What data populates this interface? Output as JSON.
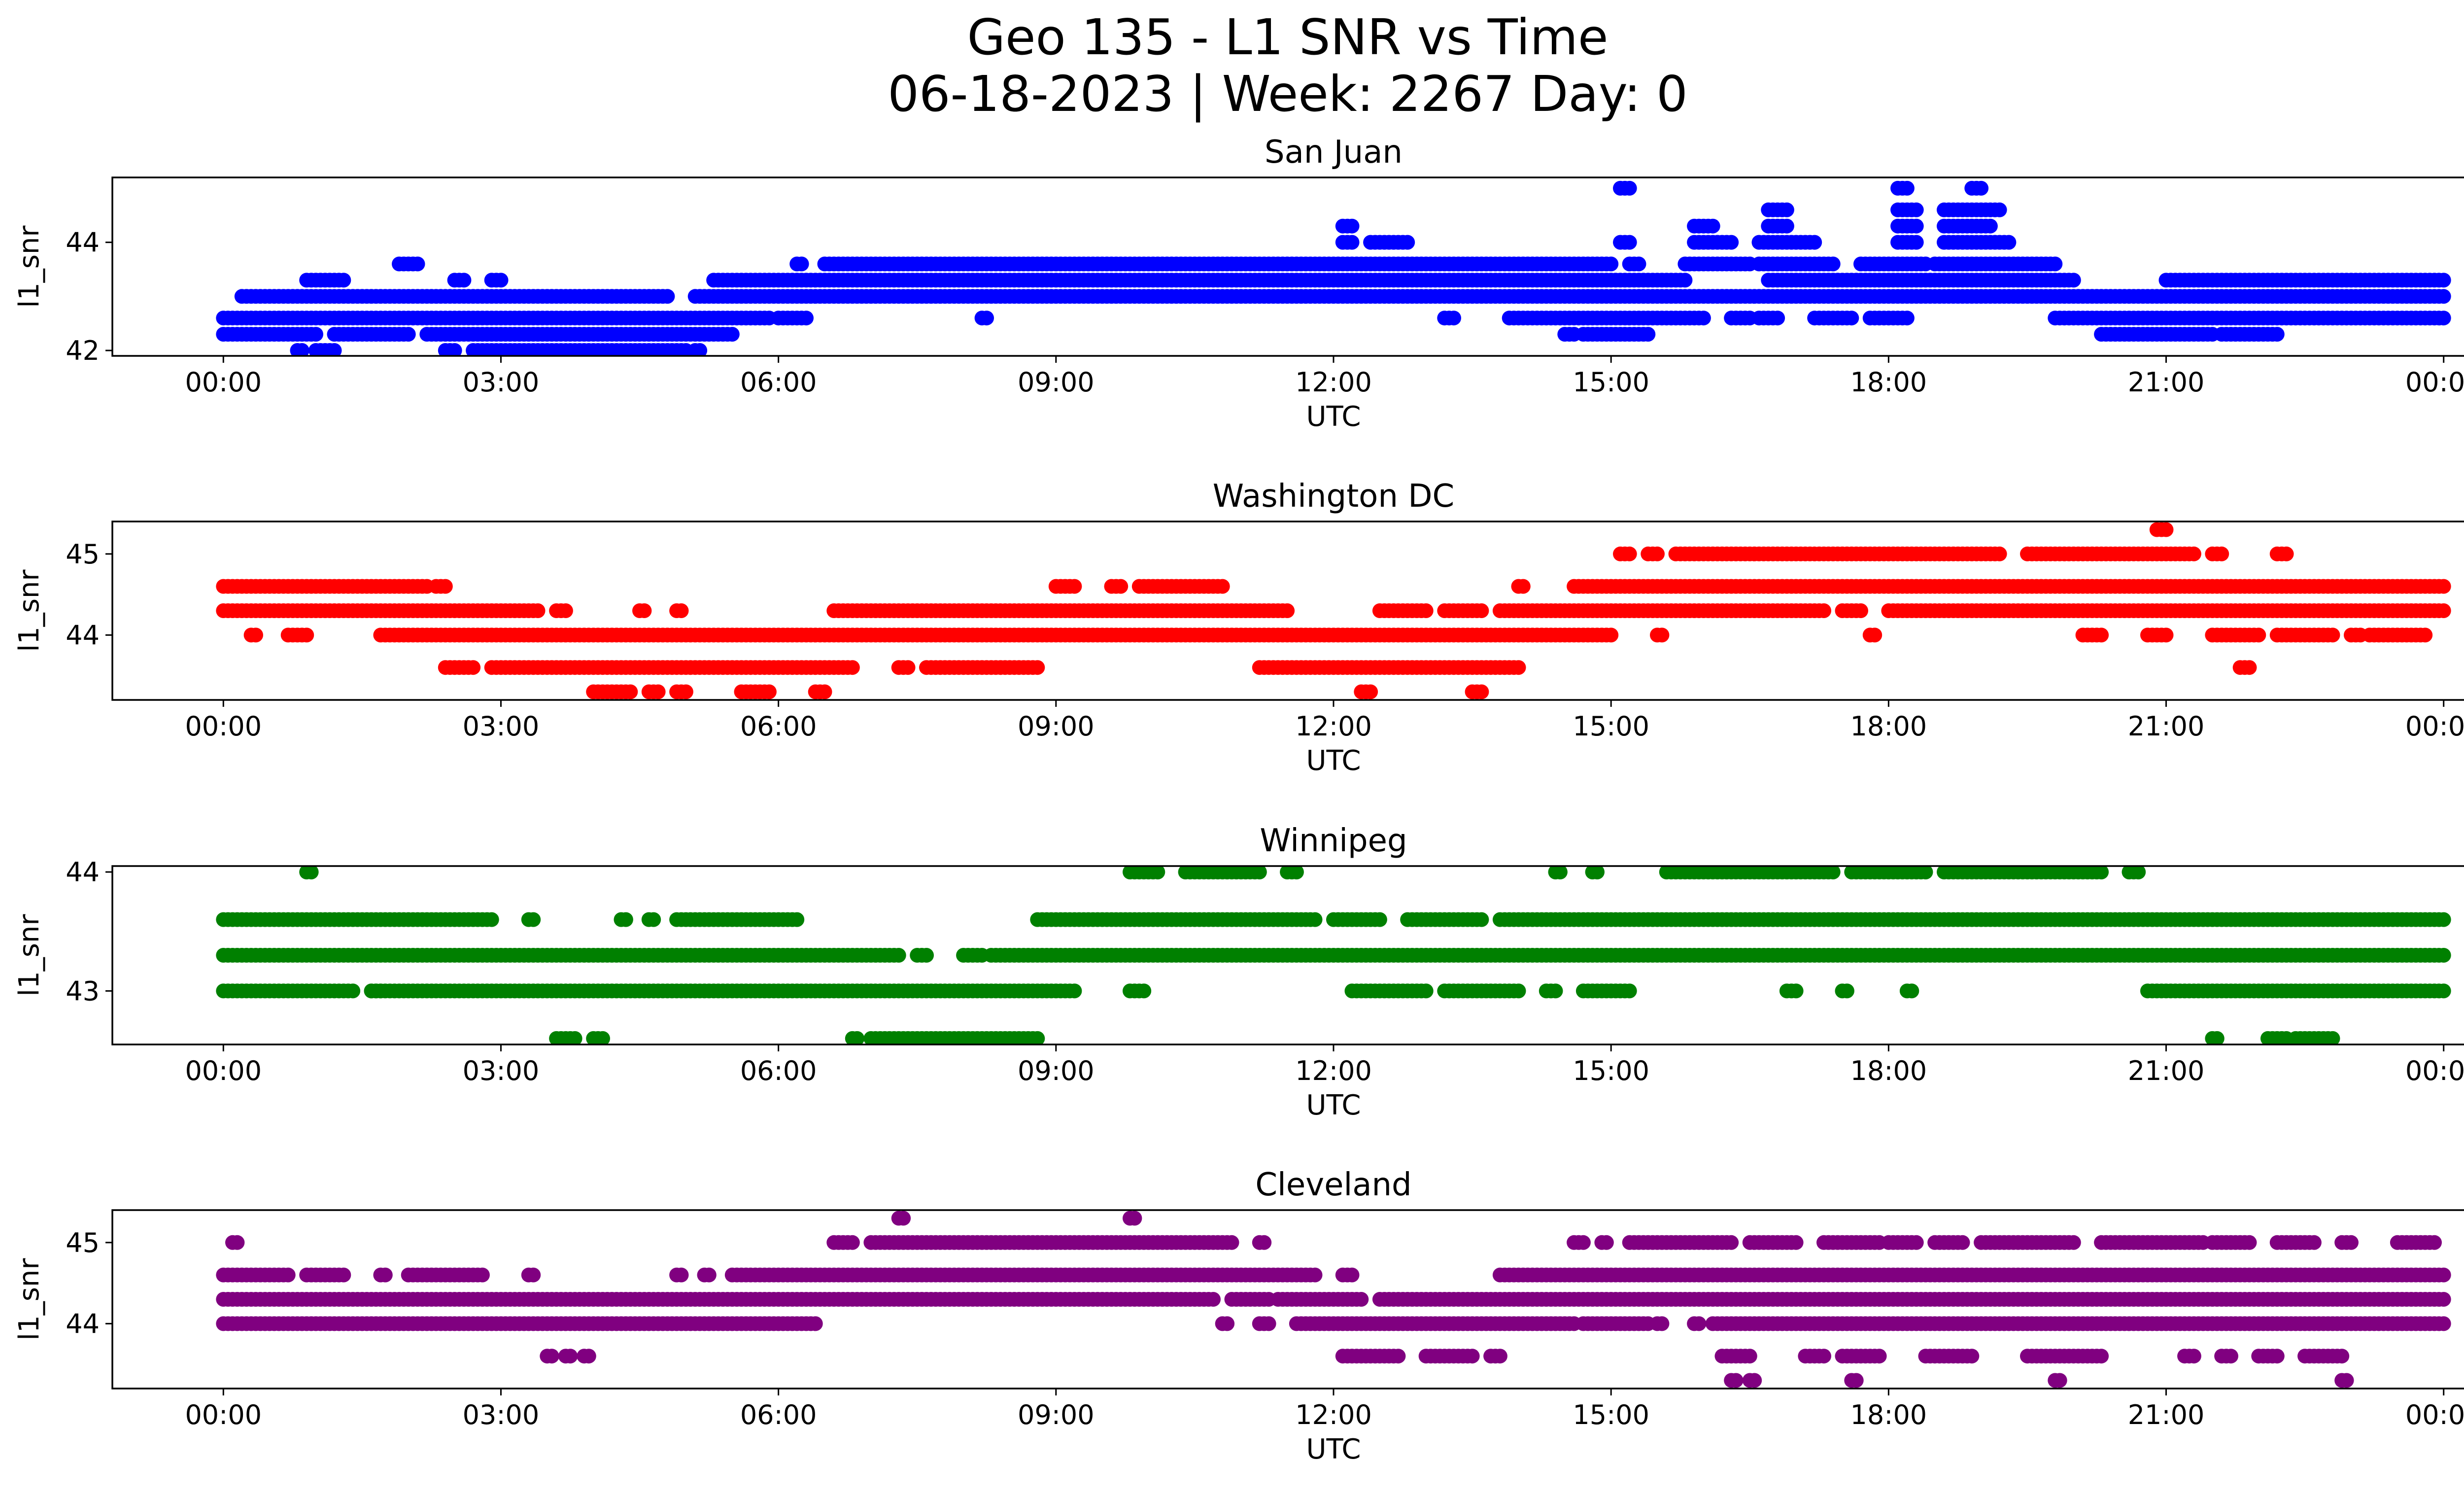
{
  "figure": {
    "title_line1": "Geo 135 - L1 SNR vs Time",
    "title_line2": "06-18-2023 | Week: 2267 Day: 0"
  },
  "chart_data": [
    {
      "type": "scatter",
      "title": "San Juan",
      "xlabel": "UTC",
      "ylabel": "l1_snr",
      "color": "#0000ff",
      "xlim": [
        -1.2,
        25.2
      ],
      "ylim": [
        41.9,
        45.2
      ],
      "xticks": [
        0,
        3,
        6,
        9,
        12,
        15,
        18,
        21,
        24
      ],
      "xtick_labels": [
        "00:00",
        "03:00",
        "06:00",
        "09:00",
        "12:00",
        "15:00",
        "18:00",
        "21:00",
        "00:00"
      ],
      "yticks": [
        42,
        44
      ],
      "yticks_text": [
        "42",
        "44"
      ],
      "grid": false,
      "bands": [
        {
          "y": 42.0,
          "ranges": [
            [
              0.8,
              0.85
            ],
            [
              1.0,
              1.2
            ],
            [
              2.4,
              2.5
            ],
            [
              2.7,
              5.0
            ],
            [
              5.1,
              5.15
            ]
          ]
        },
        {
          "y": 42.3,
          "ranges": [
            [
              0,
              1.0
            ],
            [
              1.2,
              2.0
            ],
            [
              2.2,
              5.5
            ],
            [
              14.5,
              14.6
            ],
            [
              14.7,
              15.4
            ],
            [
              20.3,
              21.5
            ],
            [
              21.6,
              22.2
            ]
          ]
        },
        {
          "y": 42.6,
          "ranges": [
            [
              0,
              5.9
            ],
            [
              6.0,
              6.3
            ],
            [
              8.2,
              8.25
            ],
            [
              13.2,
              13.3
            ],
            [
              13.9,
              16.0
            ],
            [
              16.3,
              16.5
            ],
            [
              16.6,
              16.8
            ],
            [
              17.2,
              17.6
            ],
            [
              17.8,
              18.2
            ],
            [
              19.8,
              24.0
            ]
          ]
        },
        {
          "y": 43.0,
          "ranges": [
            [
              0.2,
              4.8
            ],
            [
              5.1,
              24.0
            ]
          ]
        },
        {
          "y": 43.3,
          "ranges": [
            [
              0.9,
              1.3
            ],
            [
              2.5,
              2.6
            ],
            [
              2.9,
              3.0
            ],
            [
              5.3,
              15.8
            ],
            [
              16.7,
              20.0
            ],
            [
              21.0,
              24.0
            ]
          ]
        },
        {
          "y": 43.6,
          "ranges": [
            [
              1.9,
              2.1
            ],
            [
              6.2,
              6.25
            ],
            [
              6.5,
              15.0
            ],
            [
              15.2,
              15.3
            ],
            [
              15.8,
              16.5
            ],
            [
              16.6,
              17.4
            ],
            [
              17.7,
              18.4
            ],
            [
              18.5,
              19.8
            ]
          ]
        },
        {
          "y": 44.0,
          "ranges": [
            [
              12.1,
              12.2
            ],
            [
              12.4,
              12.8
            ],
            [
              15.1,
              15.2
            ],
            [
              15.9,
              16.3
            ],
            [
              16.6,
              17.2
            ],
            [
              18.1,
              18.3
            ],
            [
              18.6,
              19.3
            ]
          ]
        },
        {
          "y": 44.3,
          "ranges": [
            [
              12.1,
              12.2
            ],
            [
              15.9,
              16.1
            ],
            [
              16.7,
              16.9
            ],
            [
              18.1,
              18.3
            ],
            [
              18.6,
              19.1
            ]
          ]
        },
        {
          "y": 44.6,
          "ranges": [
            [
              16.7,
              16.9
            ],
            [
              18.1,
              18.3
            ],
            [
              18.6,
              19.2
            ]
          ]
        },
        {
          "y": 45.0,
          "ranges": [
            [
              15.1,
              15.2
            ],
            [
              18.1,
              18.2
            ],
            [
              18.9,
              19.0
            ]
          ]
        }
      ]
    },
    {
      "type": "scatter",
      "title": "Washington DC",
      "xlabel": "UTC",
      "ylabel": "l1_snr",
      "color": "#ff0000",
      "xlim": [
        -1.2,
        25.2
      ],
      "ylim": [
        43.2,
        45.4
      ],
      "xticks": [
        0,
        3,
        6,
        9,
        12,
        15,
        18,
        21,
        24
      ],
      "xtick_labels": [
        "00:00",
        "03:00",
        "06:00",
        "09:00",
        "12:00",
        "15:00",
        "18:00",
        "21:00",
        "00:00"
      ],
      "yticks": [
        44,
        45
      ],
      "yticks_text": [
        "44",
        "45"
      ],
      "grid": false,
      "bands": [
        {
          "y": 43.3,
          "ranges": [
            [
              4.0,
              4.4
            ],
            [
              4.6,
              4.7
            ],
            [
              4.9,
              5.0
            ],
            [
              5.6,
              5.9
            ],
            [
              6.4,
              6.5
            ],
            [
              12.3,
              12.4
            ],
            [
              13.5,
              13.6
            ]
          ]
        },
        {
          "y": 43.6,
          "ranges": [
            [
              2.4,
              2.7
            ],
            [
              2.9,
              6.8
            ],
            [
              7.3,
              7.4
            ],
            [
              7.6,
              8.8
            ],
            [
              11.2,
              14.0
            ],
            [
              21.8,
              21.9
            ]
          ]
        },
        {
          "y": 44.0,
          "ranges": [
            [
              0.3,
              0.35
            ],
            [
              0.7,
              0.9
            ],
            [
              1.7,
              15.0
            ],
            [
              15.5,
              15.55
            ],
            [
              17.8,
              17.85
            ],
            [
              20.1,
              20.3
            ],
            [
              20.8,
              21.0
            ],
            [
              21.5,
              22.0
            ],
            [
              22.2,
              22.8
            ],
            [
              23.0,
              23.1
            ],
            [
              23.2,
              23.8
            ]
          ]
        },
        {
          "y": 44.3,
          "ranges": [
            [
              0,
              3.4
            ],
            [
              3.6,
              3.7
            ],
            [
              4.5,
              4.55
            ],
            [
              4.9,
              4.95
            ],
            [
              6.6,
              11.5
            ],
            [
              12.5,
              13.0
            ],
            [
              13.2,
              13.6
            ],
            [
              13.8,
              17.3
            ],
            [
              17.5,
              17.7
            ],
            [
              18.0,
              24.0
            ]
          ]
        },
        {
          "y": 44.6,
          "ranges": [
            [
              0,
              2.2
            ],
            [
              2.3,
              2.4
            ],
            [
              9.0,
              9.2
            ],
            [
              9.6,
              9.7
            ],
            [
              9.9,
              10.8
            ],
            [
              14.0,
              14.05
            ],
            [
              14.6,
              24.0
            ]
          ]
        },
        {
          "y": 45.0,
          "ranges": [
            [
              15.1,
              15.2
            ],
            [
              15.4,
              15.5
            ],
            [
              15.7,
              19.2
            ],
            [
              19.5,
              21.3
            ],
            [
              21.5,
              21.6
            ],
            [
              22.2,
              22.3
            ]
          ]
        },
        {
          "y": 45.3,
          "ranges": [
            [
              20.9,
              21.0
            ]
          ]
        }
      ]
    },
    {
      "type": "scatter",
      "title": "Winnipeg",
      "xlabel": "UTC",
      "ylabel": "l1_snr",
      "color": "#008000",
      "xlim": [
        -1.2,
        25.2
      ],
      "ylim": [
        42.55,
        44.05
      ],
      "xticks": [
        0,
        3,
        6,
        9,
        12,
        15,
        18,
        21,
        24
      ],
      "xtick_labels": [
        "00:00",
        "03:00",
        "06:00",
        "09:00",
        "12:00",
        "15:00",
        "18:00",
        "21:00",
        "00:00"
      ],
      "yticks": [
        43,
        44
      ],
      "yticks_text": [
        "43",
        "44"
      ],
      "grid": false,
      "bands": [
        {
          "y": 42.6,
          "ranges": [
            [
              3.6,
              3.8
            ],
            [
              4.0,
              4.1
            ],
            [
              6.8,
              6.85
            ],
            [
              7.0,
              8.8
            ],
            [
              21.5,
              21.55
            ],
            [
              22.1,
              22.3
            ],
            [
              22.4,
              22.8
            ]
          ]
        },
        {
          "y": 43.0,
          "ranges": [
            [
              0,
              1.4
            ],
            [
              1.6,
              1.7
            ],
            [
              1.6,
              9.2
            ],
            [
              9.8,
              9.95
            ],
            [
              12.2,
              13.0
            ],
            [
              13.2,
              14.0
            ],
            [
              14.3,
              14.4
            ],
            [
              14.7,
              15.2
            ],
            [
              16.9,
              17.0
            ],
            [
              17.5,
              17.55
            ],
            [
              18.2,
              18.25
            ],
            [
              20.8,
              24.0
            ]
          ]
        },
        {
          "y": 43.3,
          "ranges": [
            [
              0,
              7.3
            ],
            [
              7.5,
              7.6
            ],
            [
              8.0,
              8.2
            ],
            [
              8.3,
              24.0
            ]
          ]
        },
        {
          "y": 43.6,
          "ranges": [
            [
              0,
              2.9
            ],
            [
              3.3,
              3.35
            ],
            [
              4.3,
              4.35
            ],
            [
              4.6,
              4.65
            ],
            [
              4.9,
              6.2
            ],
            [
              8.8,
              11.8
            ],
            [
              12.0,
              12.5
            ],
            [
              12.8,
              13.6
            ],
            [
              13.8,
              24.0
            ]
          ]
        },
        {
          "y": 44.0,
          "ranges": [
            [
              0.9,
              0.95
            ],
            [
              9.8,
              10.1
            ],
            [
              10.4,
              11.2
            ],
            [
              11.5,
              11.6
            ],
            [
              14.4,
              14.45
            ],
            [
              14.8,
              14.85
            ],
            [
              15.6,
              17.4
            ],
            [
              17.6,
              18.4
            ],
            [
              18.6,
              20.3
            ],
            [
              20.6,
              20.7
            ]
          ]
        }
      ]
    },
    {
      "type": "scatter",
      "title": "Cleveland",
      "xlabel": "UTC",
      "ylabel": "l1_snr",
      "color": "#800080",
      "xlim": [
        -1.2,
        25.2
      ],
      "ylim": [
        43.2,
        45.4
      ],
      "xticks": [
        0,
        3,
        6,
        9,
        12,
        15,
        18,
        21,
        24
      ],
      "xtick_labels": [
        "00:00",
        "03:00",
        "06:00",
        "09:00",
        "12:00",
        "15:00",
        "18:00",
        "21:00",
        "00:00"
      ],
      "yticks": [
        44,
        45
      ],
      "yticks_text": [
        "44",
        "45"
      ],
      "grid": false,
      "bands": [
        {
          "y": 43.3,
          "ranges": [
            [
              16.3,
              16.35
            ],
            [
              16.5,
              16.55
            ],
            [
              17.6,
              17.65
            ],
            [
              19.8,
              19.85
            ],
            [
              22.9,
              22.95
            ]
          ]
        },
        {
          "y": 43.6,
          "ranges": [
            [
              3.5,
              3.55
            ],
            [
              3.7,
              3.75
            ],
            [
              3.9,
              3.95
            ],
            [
              12.1,
              12.7
            ],
            [
              13.0,
              13.5
            ],
            [
              13.7,
              13.8
            ],
            [
              16.2,
              16.5
            ],
            [
              17.1,
              17.3
            ],
            [
              17.5,
              17.9
            ],
            [
              18.4,
              18.9
            ],
            [
              19.5,
              20.3
            ],
            [
              21.2,
              21.3
            ],
            [
              21.6,
              21.7
            ],
            [
              22.0,
              22.2
            ],
            [
              22.5,
              22.9
            ]
          ]
        },
        {
          "y": 44.0,
          "ranges": [
            [
              0,
              6.4
            ],
            [
              10.8,
              10.85
            ],
            [
              11.2,
              11.3
            ],
            [
              11.6,
              14.6
            ],
            [
              14.7,
              15.4
            ],
            [
              15.5,
              15.55
            ],
            [
              15.9,
              15.95
            ],
            [
              16.1,
              24.0
            ]
          ]
        },
        {
          "y": 44.3,
          "ranges": [
            [
              0,
              10.7
            ],
            [
              10.9,
              11.3
            ],
            [
              11.4,
              12.3
            ],
            [
              12.5,
              24.0
            ]
          ]
        },
        {
          "y": 44.6,
          "ranges": [
            [
              0,
              0.7
            ],
            [
              0.9,
              1.3
            ],
            [
              1.7,
              1.75
            ],
            [
              2.0,
              2.8
            ],
            [
              3.3,
              3.35
            ],
            [
              4.9,
              4.95
            ],
            [
              5.2,
              5.25
            ],
            [
              5.5,
              11.8
            ],
            [
              12.1,
              12.2
            ],
            [
              13.8,
              24.0
            ]
          ]
        },
        {
          "y": 45.0,
          "ranges": [
            [
              0.1,
              0.15
            ],
            [
              6.6,
              6.8
            ],
            [
              7.0,
              10.9
            ],
            [
              11.2,
              11.25
            ],
            [
              14.6,
              14.7
            ],
            [
              14.9,
              14.95
            ],
            [
              15.2,
              16.3
            ],
            [
              16.5,
              17.0
            ],
            [
              17.3,
              17.9
            ],
            [
              18.0,
              18.3
            ],
            [
              18.5,
              18.8
            ],
            [
              19.0,
              20.0
            ],
            [
              20.3,
              21.4
            ],
            [
              21.5,
              21.9
            ],
            [
              22.2,
              22.6
            ],
            [
              22.9,
              23.0
            ],
            [
              23.5,
              23.9
            ]
          ]
        },
        {
          "y": 45.3,
          "ranges": [
            [
              7.3,
              7.35
            ],
            [
              9.8,
              9.85
            ]
          ]
        }
      ]
    }
  ]
}
